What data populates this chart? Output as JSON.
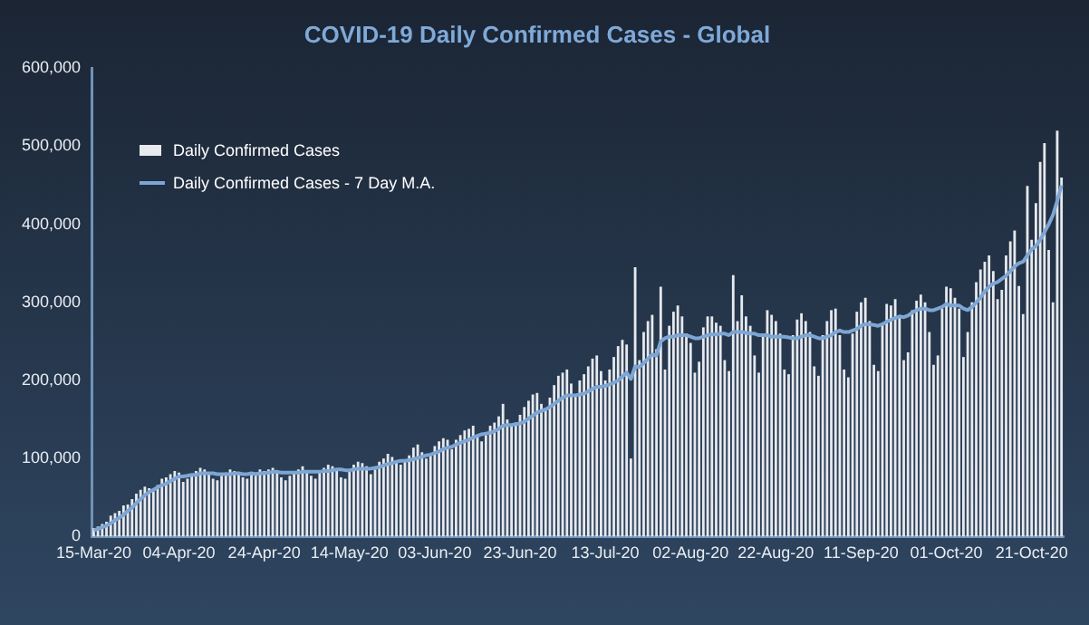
{
  "chart_data": {
    "type": "bar",
    "title": "COVID-19 Daily Confirmed Cases - Global",
    "legend": "top left",
    "marker": "none",
    "categories": [
      "15-Mar-20",
      null,
      null,
      null,
      null,
      null,
      null,
      null,
      null,
      null,
      null,
      null,
      null,
      null,
      null,
      null,
      null,
      null,
      null,
      null,
      "04-Apr-20",
      null,
      null,
      null,
      null,
      null,
      null,
      null,
      null,
      null,
      null,
      null,
      null,
      null,
      null,
      null,
      null,
      null,
      null,
      null,
      "24-Apr-20",
      null,
      null,
      null,
      null,
      null,
      null,
      null,
      null,
      null,
      null,
      null,
      null,
      null,
      null,
      null,
      null,
      null,
      null,
      null,
      "14-May-20",
      null,
      null,
      null,
      null,
      null,
      null,
      null,
      null,
      null,
      null,
      null,
      null,
      null,
      null,
      null,
      null,
      null,
      null,
      null,
      "03-Jun-20",
      null,
      null,
      null,
      null,
      null,
      null,
      null,
      null,
      null,
      null,
      null,
      null,
      null,
      null,
      null,
      null,
      null,
      null,
      null,
      "23-Jun-20",
      null,
      null,
      null,
      null,
      null,
      null,
      null,
      null,
      null,
      null,
      null,
      null,
      null,
      null,
      null,
      null,
      null,
      null,
      null,
      "13-Jul-20",
      null,
      null,
      null,
      null,
      null,
      null,
      null,
      null,
      null,
      null,
      null,
      null,
      null,
      null,
      null,
      null,
      null,
      null,
      null,
      "02-Aug-20",
      null,
      null,
      null,
      null,
      null,
      null,
      null,
      null,
      null,
      null,
      null,
      null,
      null,
      null,
      null,
      null,
      null,
      null,
      null,
      "22-Aug-20",
      null,
      null,
      null,
      null,
      null,
      null,
      null,
      null,
      null,
      null,
      null,
      null,
      null,
      null,
      null,
      null,
      null,
      null,
      null,
      "11-Sep-20",
      null,
      null,
      null,
      null,
      null,
      null,
      null,
      null,
      null,
      null,
      null,
      null,
      null,
      null,
      null,
      null,
      null,
      null,
      null,
      "01-Oct-20",
      null,
      null,
      null,
      null,
      null,
      null,
      null,
      null,
      null,
      null,
      null,
      null,
      null,
      null,
      null,
      null,
      null,
      null,
      null,
      "21-Oct-20",
      null,
      null,
      null,
      null,
      null,
      null,
      null
    ],
    "ylim": [
      0,
      600000
    ],
    "yticks": [
      {
        "value": 0,
        "label": "0"
      },
      {
        "value": 100000,
        "label": "100,000"
      },
      {
        "value": 200000,
        "label": "200,000"
      },
      {
        "value": 300000,
        "label": "300,000"
      },
      {
        "value": 400000,
        "label": "400,000"
      },
      {
        "value": 500000,
        "label": "500,000"
      },
      {
        "value": 600000,
        "label": "600,000"
      }
    ],
    "series": [
      {
        "name": "Daily Confirmed Cases",
        "type": "bar",
        "color": "#e6e9ee",
        "values": [
          11000,
          13000,
          16000,
          19000,
          27000,
          30000,
          33000,
          40000,
          41000,
          48000,
          55000,
          60000,
          64000,
          62000,
          58000,
          66000,
          74000,
          76000,
          80000,
          84000,
          82000,
          70000,
          74000,
          80000,
          84000,
          88000,
          86000,
          82000,
          74000,
          72000,
          78000,
          82000,
          86000,
          84000,
          80000,
          76000,
          74000,
          80000,
          82000,
          86000,
          84000,
          86000,
          88000,
          82000,
          76000,
          72000,
          78000,
          84000,
          86000,
          90000,
          84000,
          78000,
          74000,
          82000,
          88000,
          92000,
          90000,
          86000,
          76000,
          74000,
          84000,
          92000,
          96000,
          94000,
          90000,
          80000,
          86000,
          96000,
          100000,
          106000,
          102000,
          96000,
          92000,
          98000,
          104000,
          114000,
          118000,
          108000,
          100000,
          106000,
          116000,
          122000,
          126000,
          124000,
          112000,
          124000,
          130000,
          136000,
          138000,
          142000,
          130000,
          122000,
          130000,
          142000,
          146000,
          154000,
          170000,
          150000,
          142000,
          146000,
          156000,
          166000,
          174000,
          182000,
          184000,
          170000,
          164000,
          178000,
          194000,
          206000,
          210000,
          214000,
          196000,
          182000,
          200000,
          208000,
          218000,
          228000,
          232000,
          212000,
          200000,
          214000,
          230000,
          244000,
          252000,
          246000,
          100000,
          345000,
          226000,
          262000,
          276000,
          284000,
          240000,
          320000,
          214000,
          270000,
          288000,
          296000,
          282000,
          260000,
          248000,
          210000,
          224000,
          268000,
          282000,
          282000,
          274000,
          270000,
          226000,
          212000,
          335000,
          276000,
          309000,
          282000,
          270000,
          232000,
          210000,
          260000,
          290000,
          284000,
          276000,
          260000,
          214000,
          208000,
          258000,
          278000,
          286000,
          276000,
          262000,
          218000,
          206000,
          258000,
          276000,
          290000,
          292000,
          258000,
          214000,
          204000,
          260000,
          288000,
          300000,
          306000,
          276000,
          220000,
          212000,
          272000,
          298000,
          296000,
          304000,
          280000,
          226000,
          236000,
          290000,
          302000,
          310000,
          300000,
          262000,
          220000,
          232000,
          292000,
          320000,
          318000,
          306000,
          292000,
          230000,
          262000,
          300000,
          326000,
          342000,
          352000,
          360000,
          340000,
          304000,
          316000,
          360000,
          378000,
          392000,
          321000,
          285000,
          449000,
          380000,
          427000,
          480000,
          504000,
          367000,
          300000,
          520000,
          460000
        ]
      },
      {
        "name": "Daily Confirmed Cases - 7 Day M.A.",
        "type": "line",
        "color": "#7ea6d4",
        "values": [
          8000,
          10000,
          12000,
          14000,
          17000,
          21000,
          24000,
          28000,
          33000,
          37000,
          43000,
          48000,
          53000,
          57000,
          60000,
          63000,
          66000,
          68000,
          71000,
          74000,
          77000,
          77000,
          78000,
          79000,
          79000,
          81000,
          81000,
          81000,
          81000,
          80000,
          80000,
          80000,
          80000,
          81000,
          81000,
          80000,
          80000,
          81000,
          80000,
          81000,
          81000,
          82000,
          83000,
          83000,
          82000,
          82000,
          82000,
          82000,
          82000,
          83000,
          83000,
          83000,
          83000,
          83000,
          84000,
          84000,
          85000,
          86000,
          86000,
          85000,
          85000,
          86000,
          87000,
          87000,
          87000,
          87000,
          88000,
          89000,
          91000,
          93000,
          94000,
          96000,
          97000,
          97000,
          98000,
          99000,
          101000,
          102000,
          104000,
          105000,
          107000,
          109000,
          112000,
          114000,
          115000,
          118000,
          120000,
          122000,
          124000,
          127000,
          129000,
          131000,
          132000,
          133000,
          135000,
          138000,
          142000,
          143000,
          143000,
          144000,
          145000,
          147000,
          151000,
          155000,
          159000,
          161000,
          163000,
          166000,
          170000,
          174000,
          178000,
          181000,
          181000,
          181000,
          182000,
          183000,
          186000,
          189000,
          192000,
          192000,
          193000,
          195000,
          197000,
          200000,
          205000,
          210000,
          202000,
          218000,
          217000,
          222000,
          228000,
          233000,
          232000,
          250000,
          254000,
          256000,
          256000,
          258000,
          258000,
          258000,
          256000,
          254000,
          254000,
          256000,
          258000,
          259000,
          259000,
          260000,
          260000,
          258000,
          262000,
          262000,
          262000,
          261000,
          260000,
          260000,
          258000,
          258000,
          258000,
          256000,
          256000,
          256000,
          256000,
          255000,
          254000,
          254000,
          256000,
          258000,
          258000,
          256000,
          254000,
          254000,
          256000,
          258000,
          262000,
          264000,
          262000,
          262000,
          264000,
          266000,
          270000,
          272000,
          272000,
          271000,
          270000,
          272000,
          275000,
          278000,
          280000,
          282000,
          281000,
          283000,
          287000,
          290000,
          292000,
          292000,
          290000,
          290000,
          292000,
          294000,
          298000,
          296000,
          296000,
          296000,
          292000,
          290000,
          294000,
          300000,
          306000,
          314000,
          320000,
          324000,
          326000,
          330000,
          334000,
          340000,
          346000,
          350000,
          352000,
          360000,
          368000,
          372000,
          380000,
          390000,
          400000,
          412000,
          430000,
          450000
        ]
      }
    ]
  }
}
